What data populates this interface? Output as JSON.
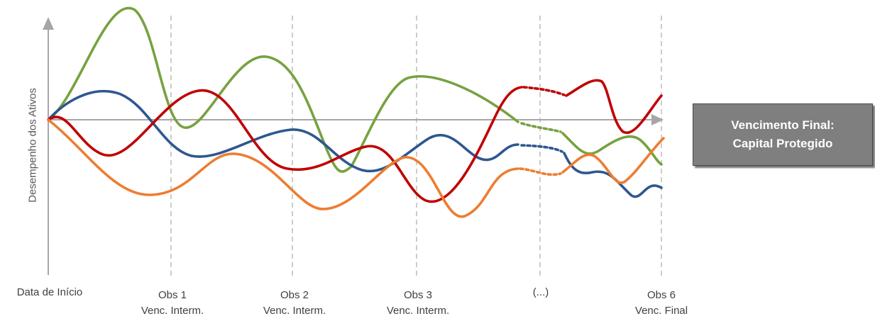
{
  "diagram": {
    "y_axis_label": "Desempenho dos Ativos",
    "x_ticks": [
      {
        "line1": "Data de Início",
        "line2": ""
      },
      {
        "line1": "Obs 1",
        "line2": "Venc. Interm."
      },
      {
        "line1": "Obs 2",
        "line2": "Venc. Interm."
      },
      {
        "line1": "Obs 3",
        "line2": "Venc. Interm."
      },
      {
        "line1": "(...)",
        "line2": ""
      },
      {
        "line1": "Obs 6",
        "line2": "Venc. Final"
      }
    ],
    "callout": {
      "line1": "Vencimento Final:",
      "line2": "Capital Protegido"
    },
    "colors": {
      "green": "#77a240",
      "blue": "#2e5790",
      "red": "#c00000",
      "orange": "#ed7d31",
      "axis": "#a6a6a6",
      "guide": "#bfbfbf",
      "callout_bg": "#7f7f7f"
    }
  }
}
